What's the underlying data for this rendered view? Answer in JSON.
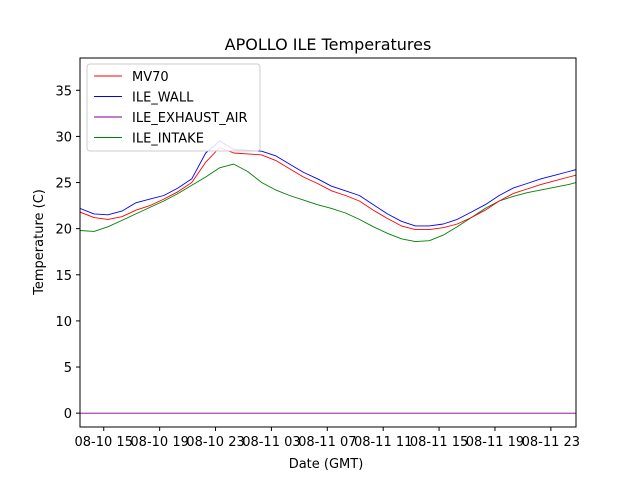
{
  "chart_data": {
    "type": "line",
    "title": "APOLLO ILE Temperatures",
    "xlabel": "Date (GMT)",
    "ylabel": "Temperature (C)",
    "xlim": [
      12.3,
      47.8
    ],
    "ylim": [
      -1.5,
      38.5
    ],
    "x_ticks": [
      {
        "x": 14,
        "label": "08-10 15"
      },
      {
        "x": 18,
        "label": "08-10 19"
      },
      {
        "x": 22,
        "label": "08-10 23"
      },
      {
        "x": 26,
        "label": "08-11 03"
      },
      {
        "x": 30,
        "label": "08-11 07"
      },
      {
        "x": 34,
        "label": "08-11 11"
      },
      {
        "x": 38,
        "label": "08-11 15"
      },
      {
        "x": 42,
        "label": "08-11 19"
      },
      {
        "x": 46,
        "label": "08-11 23"
      }
    ],
    "y_ticks": [
      0,
      5,
      10,
      15,
      20,
      25,
      30,
      35
    ],
    "grid": false,
    "legend_position": "top-left",
    "x_units": "hours since 08-10 00:00 GMT",
    "series": [
      {
        "name": "MV70",
        "color": "#ff0000",
        "x": [
          12.3,
          13.3,
          14.3,
          15.3,
          16.3,
          17.3,
          18.3,
          19.3,
          20.3,
          21.3,
          22.3,
          23.3,
          24.3,
          25.3,
          26.3,
          27.3,
          28.3,
          29.3,
          30.3,
          31.3,
          32.3,
          33.3,
          34.3,
          35.3,
          36.3,
          37.3,
          38.3,
          39.3,
          40.3,
          41.3,
          42.3,
          43.3,
          44.3,
          45.3,
          46.3,
          47.3,
          47.8
        ],
        "y": [
          21.8,
          21.2,
          21.0,
          21.3,
          22.0,
          22.5,
          23.2,
          24.0,
          25.0,
          27.2,
          28.8,
          28.2,
          28.1,
          28.0,
          27.4,
          26.5,
          25.6,
          24.9,
          24.1,
          23.6,
          23.0,
          22.0,
          21.1,
          20.3,
          19.9,
          19.9,
          20.1,
          20.5,
          21.2,
          22.0,
          23.0,
          23.8,
          24.3,
          24.8,
          25.2,
          25.6,
          25.8
        ]
      },
      {
        "name": "ILE_WALL",
        "color": "#0000ff",
        "x": [
          12.3,
          13.3,
          14.3,
          15.3,
          16.3,
          17.3,
          18.3,
          19.3,
          20.3,
          21.3,
          22.3,
          23.3,
          24.3,
          25.3,
          26.3,
          27.3,
          28.3,
          29.3,
          30.3,
          31.3,
          32.3,
          33.3,
          34.3,
          35.3,
          36.3,
          37.3,
          38.3,
          39.3,
          40.3,
          41.3,
          42.3,
          43.3,
          44.3,
          45.3,
          46.3,
          47.3,
          47.8
        ],
        "y": [
          22.2,
          21.6,
          21.5,
          21.9,
          22.8,
          23.2,
          23.6,
          24.4,
          25.4,
          28.2,
          29.5,
          28.6,
          28.5,
          28.4,
          27.9,
          27.0,
          26.1,
          25.4,
          24.6,
          24.1,
          23.6,
          22.6,
          21.6,
          20.8,
          20.3,
          20.3,
          20.5,
          21.0,
          21.8,
          22.6,
          23.6,
          24.4,
          24.9,
          25.4,
          25.8,
          26.2,
          26.4
        ]
      },
      {
        "name": "ILE_EXHAUST_AIR",
        "color": "#800080",
        "x": [
          12.3,
          47.8
        ],
        "y": [
          0.0,
          0.0
        ]
      },
      {
        "name": "ILE_INTAKE",
        "color": "#008000",
        "x": [
          12.3,
          13.3,
          14.3,
          15.3,
          16.3,
          17.3,
          18.3,
          19.3,
          20.3,
          21.3,
          22.3,
          23.3,
          24.3,
          25.3,
          26.3,
          27.3,
          28.3,
          29.3,
          30.3,
          31.3,
          32.3,
          33.3,
          34.3,
          35.3,
          36.3,
          37.3,
          38.3,
          39.3,
          40.3,
          41.3,
          42.3,
          43.3,
          44.3,
          45.3,
          46.3,
          47.3,
          47.8
        ],
        "y": [
          19.8,
          19.7,
          20.2,
          20.9,
          21.6,
          22.3,
          23.0,
          23.8,
          24.7,
          25.6,
          26.6,
          27.0,
          26.2,
          25.0,
          24.2,
          23.6,
          23.1,
          22.6,
          22.2,
          21.7,
          21.0,
          20.2,
          19.5,
          18.9,
          18.6,
          18.7,
          19.3,
          20.2,
          21.2,
          22.2,
          23.0,
          23.5,
          23.9,
          24.2,
          24.5,
          24.8,
          25.0
        ]
      }
    ]
  }
}
